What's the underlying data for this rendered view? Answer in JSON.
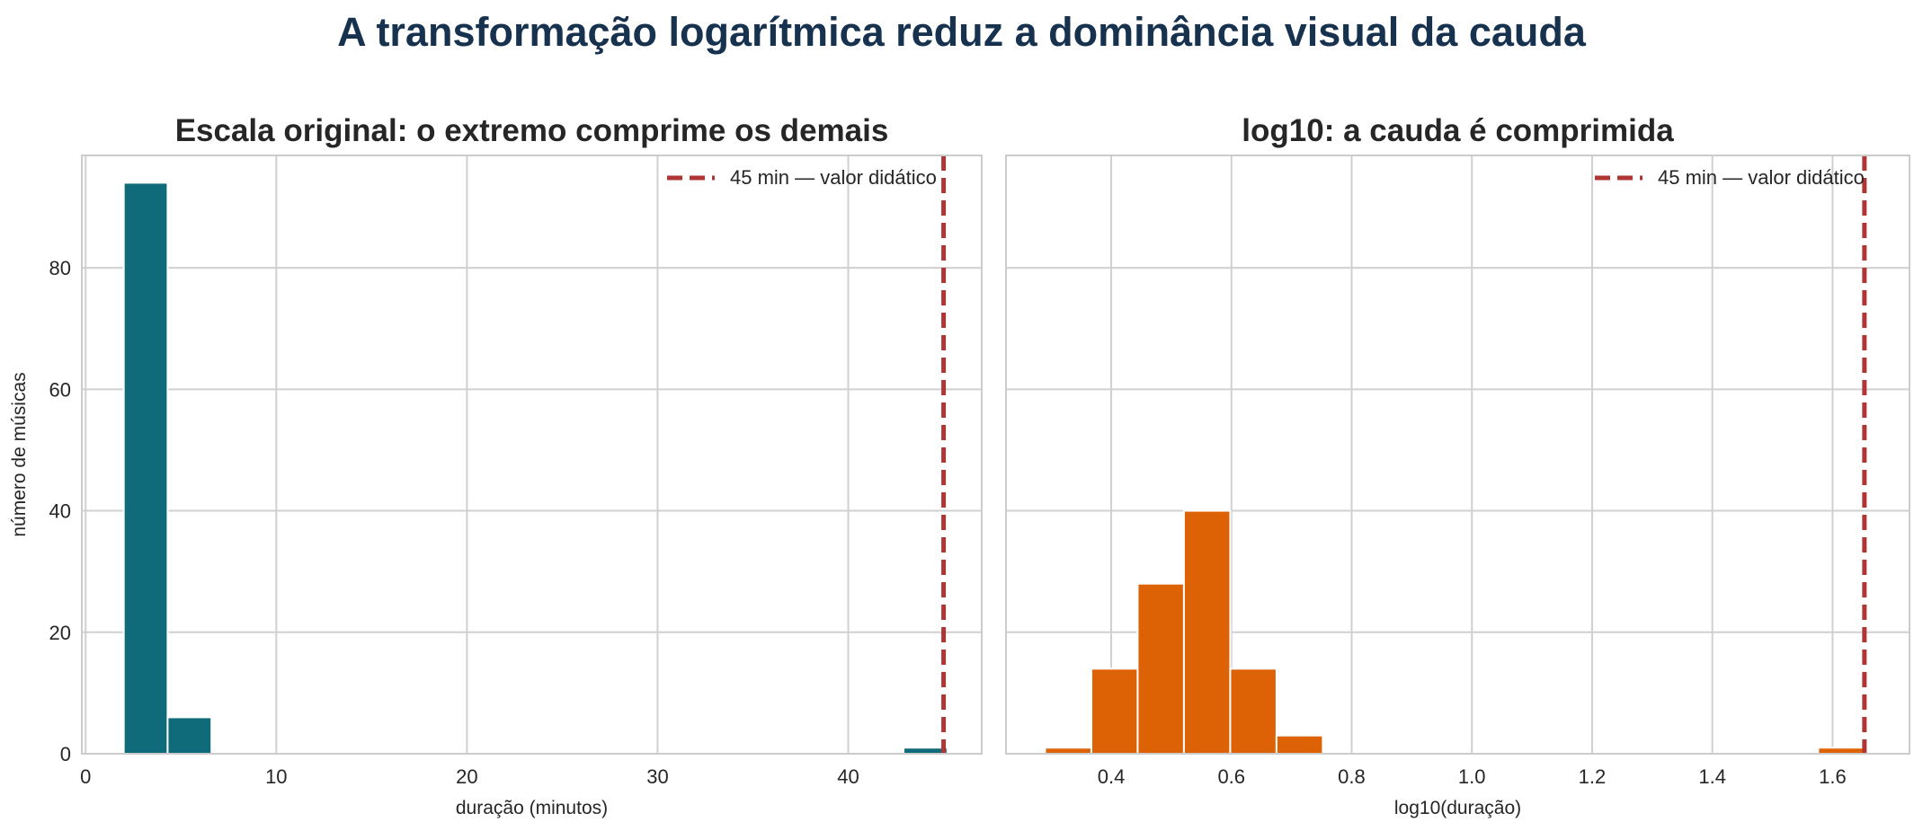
{
  "suptitle": "A transformação logarítmica reduz a dominância visual da cauda",
  "chart_data": [
    {
      "type": "bar",
      "title": "Escala original: o extremo comprime os demais",
      "xlabel": "duração (minutos)",
      "ylabel": "número de músicas",
      "xlim": [
        -0.2,
        47
      ],
      "ylim": [
        0,
        98.5
      ],
      "xticks": [
        0,
        10,
        20,
        30,
        40
      ],
      "yticks": [
        0,
        20,
        40,
        60,
        80
      ],
      "bar_color": "#0f6b7a",
      "bins": [
        {
          "x0": 2.0,
          "x1": 4.3,
          "count": 94
        },
        {
          "x0": 4.3,
          "x1": 6.6,
          "count": 6
        },
        {
          "x0": 42.9,
          "x1": 45.2,
          "count": 1
        }
      ],
      "reference_line": {
        "x": 45,
        "label": "45 min — valor didático",
        "color": "#b03535"
      },
      "legend_position": "top-right",
      "grid": true
    },
    {
      "type": "bar",
      "title": "log10: a cauda é comprimida",
      "xlabel": "log10(duração)",
      "ylabel": "",
      "xlim": [
        0.225,
        1.728
      ],
      "ylim": [
        0,
        98.5
      ],
      "xticks": [
        0.4,
        0.6,
        0.8,
        1.0,
        1.2,
        1.4,
        1.6
      ],
      "xtick_labels": [
        "0.4",
        "0.6",
        "0.8",
        "1.0",
        "1.2",
        "1.4",
        "1.6"
      ],
      "yticks": [
        0,
        20,
        40,
        60,
        80
      ],
      "show_ytick_labels": false,
      "bar_color": "#dd6205",
      "bins": [
        {
          "x0": 0.29,
          "x1": 0.367,
          "count": 1
        },
        {
          "x0": 0.367,
          "x1": 0.444,
          "count": 14
        },
        {
          "x0": 0.444,
          "x1": 0.521,
          "count": 28
        },
        {
          "x0": 0.521,
          "x1": 0.598,
          "count": 40
        },
        {
          "x0": 0.598,
          "x1": 0.675,
          "count": 14
        },
        {
          "x0": 0.675,
          "x1": 0.752,
          "count": 3
        },
        {
          "x0": 1.576,
          "x1": 1.653,
          "count": 1
        }
      ],
      "reference_line": {
        "x": 1.653,
        "label": "45 min — valor didático",
        "color": "#b03535"
      },
      "legend_position": "top-right",
      "grid": true
    }
  ]
}
